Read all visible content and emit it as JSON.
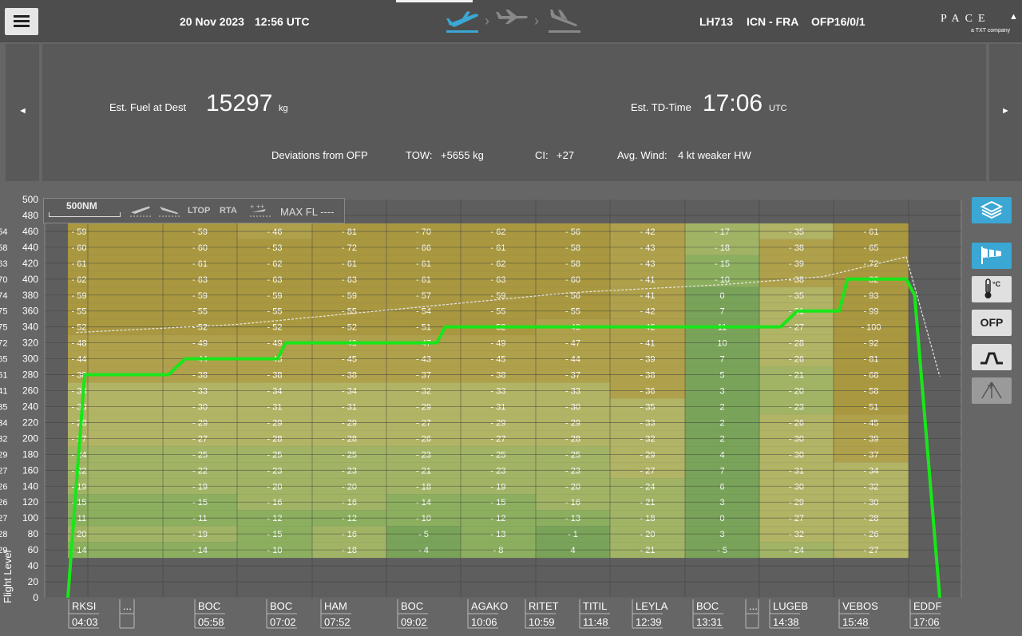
{
  "header": {
    "date": "20 Nov 2023",
    "time": "12:56 UTC",
    "flight": "LH713",
    "route": "ICN - FRA",
    "ofp": "OFP16/0/1",
    "logo_main": "PACE",
    "logo_sub": "a TXT company"
  },
  "summary": {
    "fuel_label": "Est. Fuel at Dest",
    "fuel_value": "15297",
    "fuel_unit": "kg",
    "td_label": "Est. TD-Time",
    "td_value": "17:06",
    "td_unit": "UTC",
    "deviations_label": "Deviations from OFP",
    "tow_label": "TOW:",
    "tow_value": "+5655  kg",
    "ci_label": "CI:",
    "ci_value": "+27",
    "wind_label": "Avg. Wind:",
    "wind_value": "4 kt weaker HW",
    "prev_arrow": "◄",
    "next_arrow": "►"
  },
  "legend": {
    "scale": "500NM",
    "ltop": "LTOP",
    "rta": "RTA",
    "max_fl": "MAX FL ----"
  },
  "tools": {
    "ofp": "OFP",
    "temp_unit": "°C"
  },
  "chart_data": {
    "type": "heatmap",
    "ylabel": "Flight Level",
    "ylim": [
      0,
      500
    ],
    "yticks": [
      0,
      20,
      40,
      60,
      80,
      100,
      120,
      140,
      160,
      180,
      200,
      220,
      240,
      260,
      280,
      300,
      320,
      340,
      360,
      380,
      400,
      420,
      440,
      460,
      480,
      500
    ],
    "waypoints": [
      {
        "name": "RKSI",
        "time": "04:03"
      },
      {
        "name": "...",
        "time": ""
      },
      {
        "name": "BOC",
        "time": "05:58"
      },
      {
        "name": "BOC",
        "time": "07:02"
      },
      {
        "name": "HAM",
        "time": "07:52"
      },
      {
        "name": "BOC",
        "time": "09:02"
      },
      {
        "name": "AGAKO",
        "time": "10:06"
      },
      {
        "name": "RITET",
        "time": "10:59"
      },
      {
        "name": "TITIL",
        "time": "11:48"
      },
      {
        "name": "LEYLA",
        "time": "12:39"
      },
      {
        "name": "BOC",
        "time": "13:31"
      },
      {
        "name": "...",
        "time": ""
      },
      {
        "name": "LUGEB",
        "time": "14:38"
      },
      {
        "name": "VEBOS",
        "time": "15:48"
      },
      {
        "name": "EDDF",
        "time": "17:06"
      }
    ],
    "wind_levels": [
      460,
      440,
      420,
      400,
      380,
      360,
      340,
      320,
      300,
      280,
      260,
      240,
      220,
      200,
      180,
      160,
      140,
      120,
      100,
      80,
      60
    ],
    "wind_columns": [
      [
        -59,
        -60,
        -61,
        -62,
        -59,
        -55,
        -52,
        -48,
        -44,
        -38,
        -33,
        -30,
        -28,
        -27,
        -24,
        -22,
        -19,
        -15,
        -11,
        -20,
        -14
      ],
      [
        -59,
        -60,
        -61,
        -63,
        -59,
        -55,
        -52,
        -49,
        -44,
        -38,
        -33,
        -30,
        -29,
        -27,
        -25,
        -22,
        -19,
        -15,
        -11,
        -19,
        -14
      ],
      [
        -46,
        -53,
        -62,
        -63,
        -59,
        -55,
        -52,
        -49,
        -45,
        -38,
        -34,
        -31,
        -29,
        -28,
        -25,
        -23,
        -20,
        -16,
        -12,
        -15,
        -10
      ],
      [
        -81,
        -72,
        -61,
        -63,
        -59,
        -55,
        -52,
        -49,
        -45,
        -38,
        -34,
        -31,
        -29,
        -28,
        -25,
        -23,
        -20,
        -16,
        -12,
        -16,
        -18
      ],
      [
        -70,
        -66,
        -61,
        -61,
        -57,
        -54,
        -51,
        -47,
        -43,
        -37,
        -32,
        -29,
        -27,
        -26,
        -23,
        -21,
        -18,
        -14,
        -10,
        -5,
        -4
      ],
      [
        -62,
        -61,
        -62,
        -63,
        -59,
        -55,
        -52,
        -49,
        -45,
        -38,
        -33,
        -31,
        -29,
        -27,
        -25,
        -23,
        -19,
        -15,
        -12,
        -13,
        -8
      ],
      [
        -56,
        -58,
        -58,
        -60,
        -56,
        -55,
        -49,
        -47,
        -44,
        -37,
        -33,
        -30,
        -29,
        -28,
        -25,
        -23,
        -20,
        -16,
        -13,
        -1,
        4
      ],
      [
        -42,
        -43,
        -43,
        -41,
        -41,
        -42,
        -42,
        -41,
        -39,
        -38,
        -36,
        -35,
        -33,
        -32,
        -29,
        -27,
        -24,
        -21,
        -18,
        -20,
        -21
      ],
      [
        -17,
        -18,
        -15,
        -10,
        0,
        7,
        11,
        10,
        7,
        5,
        3,
        2,
        2,
        2,
        4,
        7,
        6,
        3,
        0,
        3,
        -5
      ],
      [
        -35,
        -38,
        -39,
        -38,
        -35,
        -31,
        -27,
        -28,
        -26,
        -21,
        -20,
        -23,
        -26,
        -30,
        -30,
        -31,
        -30,
        -29,
        -27,
        -32,
        -24
      ],
      [
        -61,
        -65,
        -72,
        -82,
        -93,
        -99,
        -100,
        -92,
        -81,
        -68,
        -58,
        -51,
        -45,
        -39,
        -37,
        -34,
        -32,
        -30,
        -28,
        -26,
        -27
      ],
      [
        -54,
        -58,
        -63,
        -70,
        -74,
        -75,
        -75,
        -72,
        -65,
        -51,
        -41,
        -35,
        -34,
        -32,
        -29,
        -27,
        -26,
        -26,
        -27,
        -28,
        -29
      ]
    ],
    "planned_profile_fl": [
      [
        0,
        0
      ],
      [
        2,
        280
      ],
      [
        12,
        280
      ],
      [
        14,
        300
      ],
      [
        25,
        300
      ],
      [
        26,
        320
      ],
      [
        44,
        320
      ],
      [
        45,
        340
      ],
      [
        85,
        340
      ],
      [
        87,
        360
      ],
      [
        92,
        360
      ],
      [
        93,
        400
      ],
      [
        100,
        400
      ],
      [
        101,
        380
      ],
      [
        104,
        0
      ]
    ],
    "max_fl_profile": [
      [
        1,
        333
      ],
      [
        20,
        343
      ],
      [
        40,
        363
      ],
      [
        60,
        383
      ],
      [
        78,
        393
      ],
      [
        90,
        403
      ],
      [
        100,
        428
      ],
      [
        104,
        278
      ]
    ]
  }
}
